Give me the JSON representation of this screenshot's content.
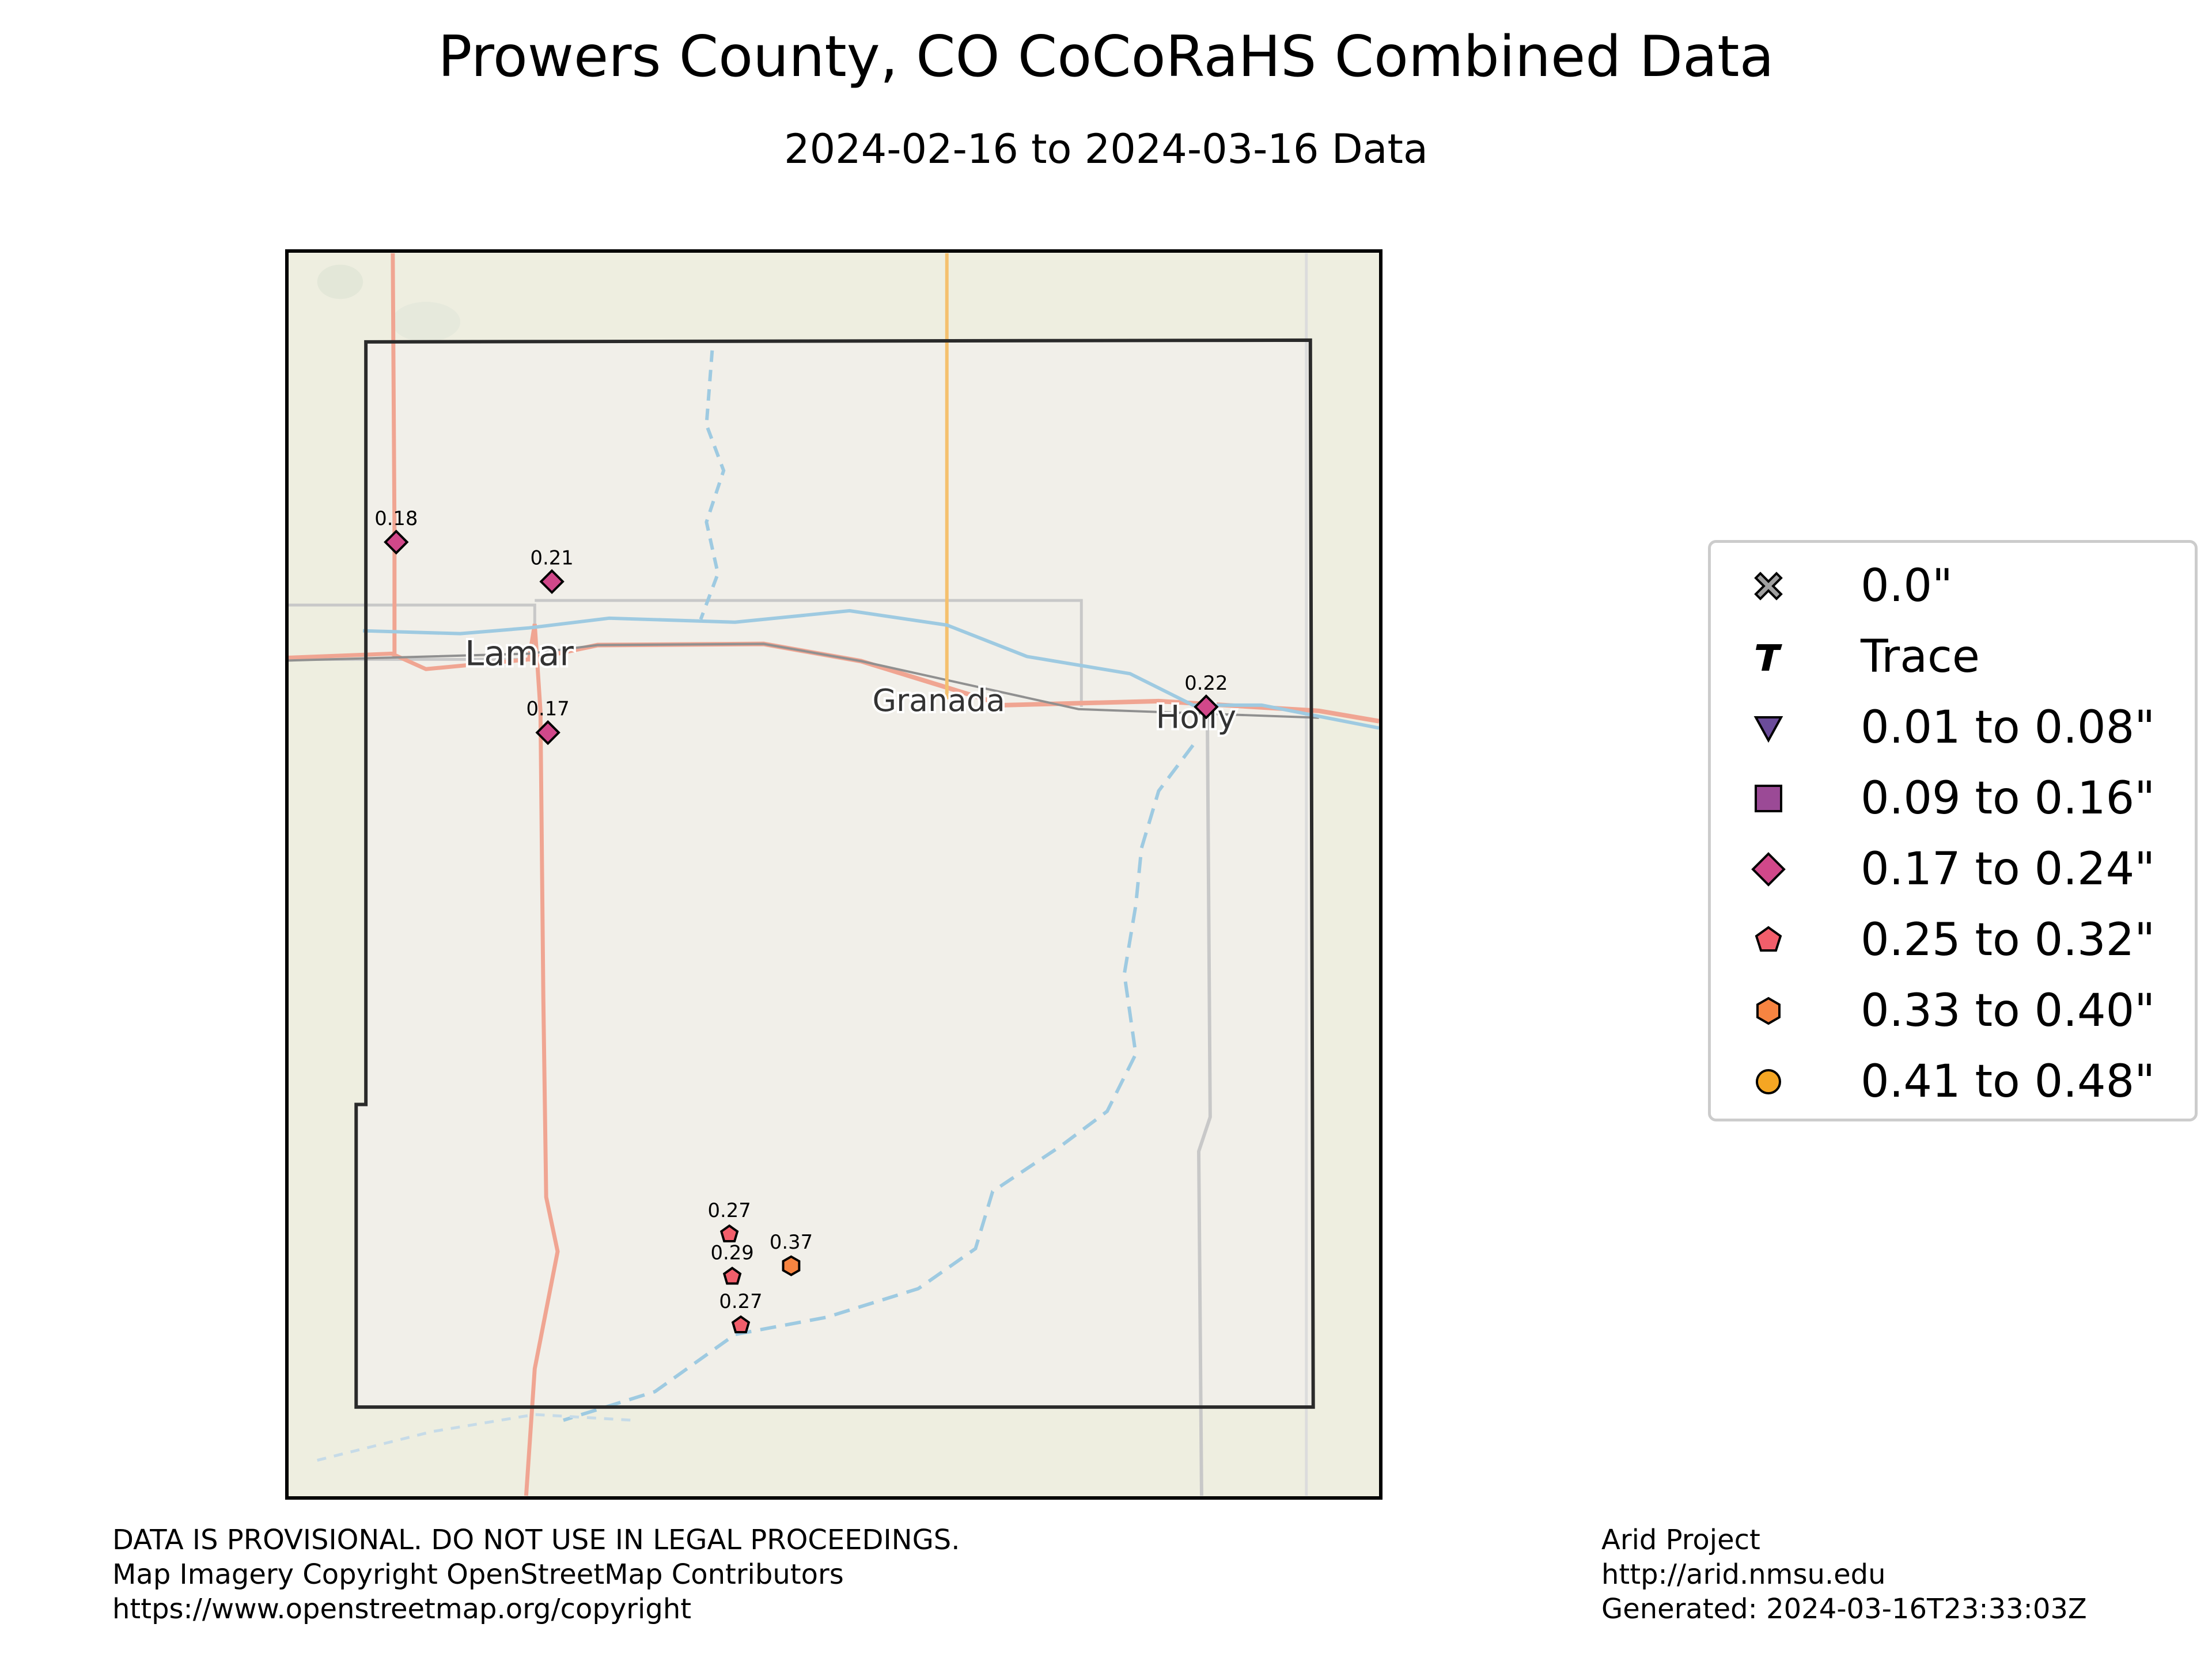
{
  "title": "Prowers County, CO CoCoRaHS Combined Data",
  "subtitle": "2024-02-16 to 2024-03-16 Data",
  "map": {
    "towns": [
      "Lamar",
      "Granada",
      "Holly"
    ],
    "stations": [
      {
        "value": "0.18",
        "symbol": "diamond-icon"
      },
      {
        "value": "0.21",
        "symbol": "diamond-icon"
      },
      {
        "value": "0.17",
        "symbol": "diamond-icon"
      },
      {
        "value": "0.22",
        "symbol": "diamond-icon"
      },
      {
        "value": "0.27",
        "symbol": "pentagon-icon"
      },
      {
        "value": "0.29",
        "symbol": "pentagon-icon"
      },
      {
        "value": "0.27",
        "symbol": "pentagon-icon"
      },
      {
        "value": "0.37",
        "symbol": "hexagon-icon"
      }
    ]
  },
  "legend": [
    {
      "label": "0.0\"",
      "icon": "x-icon",
      "color": "#a0a0a0"
    },
    {
      "label": "Trace",
      "icon": "trace-t-icon",
      "color": "#000000"
    },
    {
      "label": "0.01 to 0.08\"",
      "icon": "triangle-down-icon",
      "color": "#6b4c9a"
    },
    {
      "label": "0.09 to 0.16\"",
      "icon": "square-icon",
      "color": "#9b4a96"
    },
    {
      "label": "0.17 to 0.24\"",
      "icon": "diamond-icon",
      "color": "#d1488a"
    },
    {
      "label": "0.25 to 0.32\"",
      "icon": "pentagon-icon",
      "color": "#f25e6b"
    },
    {
      "label": "0.33 to 0.40\"",
      "icon": "hexagon-icon",
      "color": "#f78441"
    },
    {
      "label": "0.41 to 0.48\"",
      "icon": "circle-icon",
      "color": "#f5a623"
    }
  ],
  "footer_left": [
    "DATA IS PROVISIONAL. DO NOT USE IN LEGAL PROCEEDINGS.",
    "Map Imagery Copyright OpenStreetMap Contributors",
    "https://www.openstreetmap.org/copyright"
  ],
  "footer_right": [
    "Arid Project",
    "http://arid.nmsu.edu",
    "Generated: 2024-03-16T23:33:03Z"
  ]
}
